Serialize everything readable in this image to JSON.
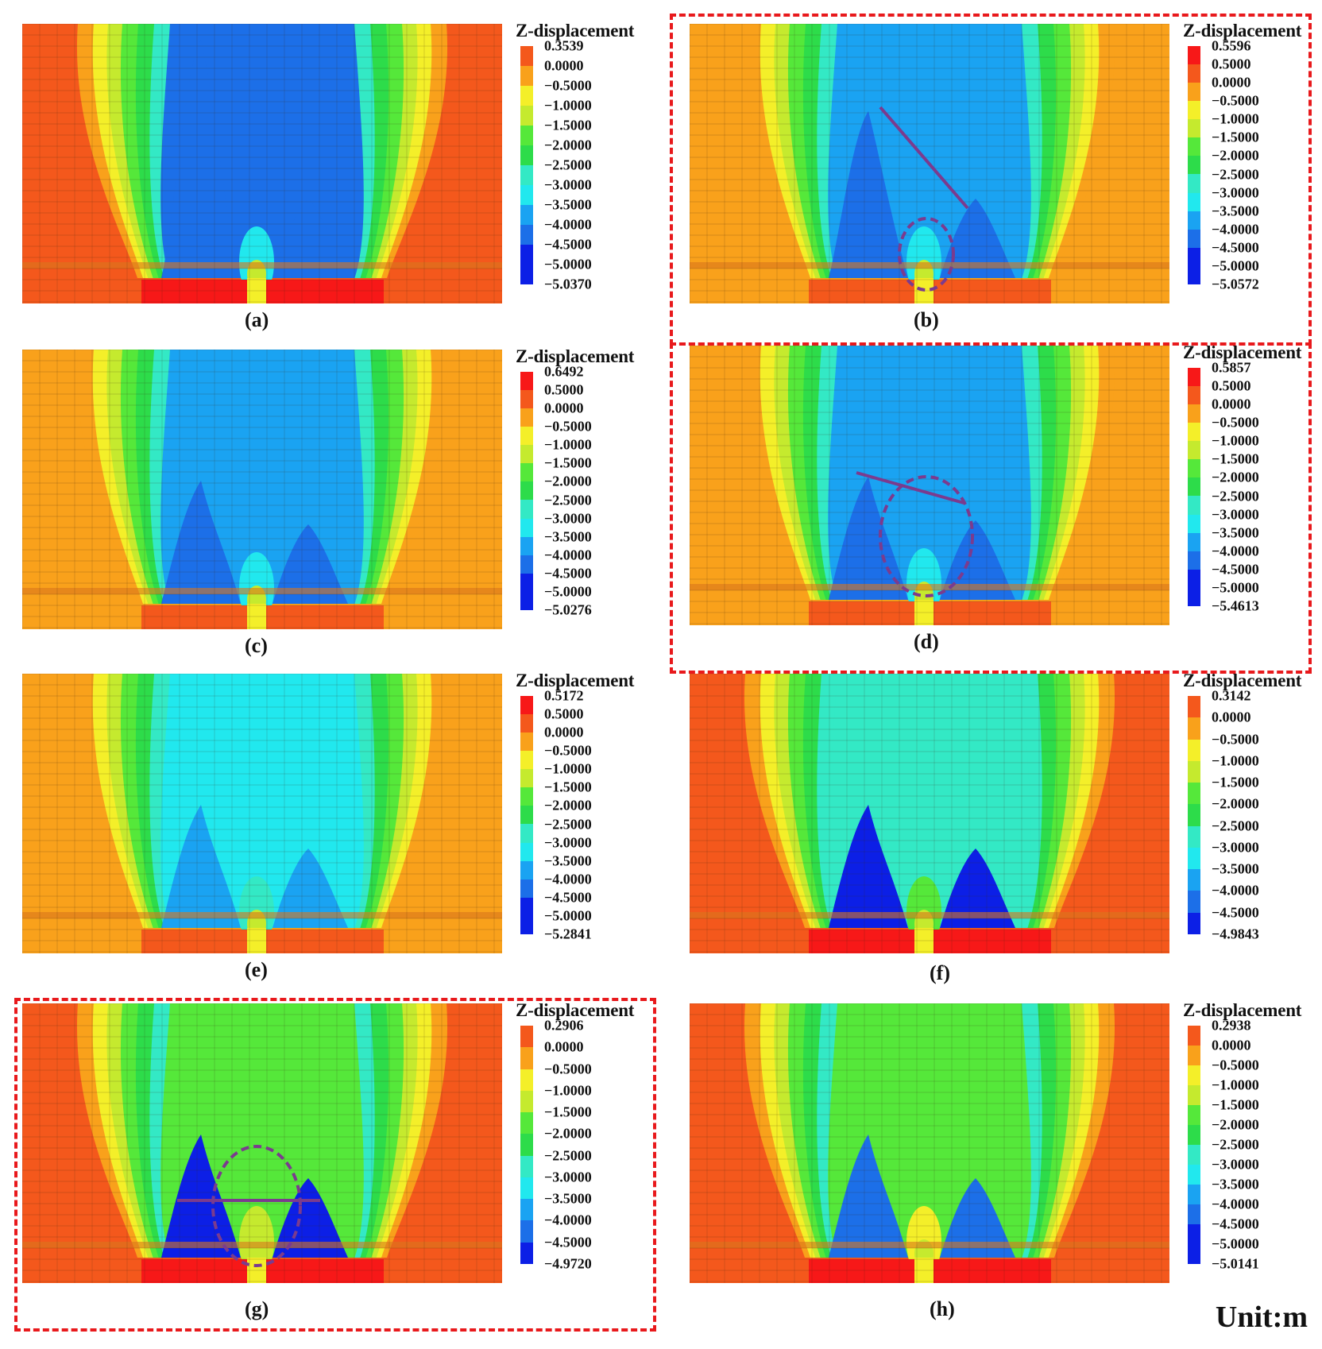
{
  "figure": {
    "unit_label": "Unit:m",
    "colors": {
      "orange_red": "#f4581c",
      "orange": "#f9a11b",
      "yellow": "#f4ef29",
      "yellow_green": "#c5ea2e",
      "green": "#55e83a",
      "bright_green": "#2ddc4a",
      "teal": "#33e9c5",
      "cyan": "#21e8ee",
      "sky_blue": "#1aa3f2",
      "mid_blue": "#1c6fe8",
      "deep_blue": "#0c1fe6",
      "red": "#f71818",
      "annotation_purple": "#7b3b8e",
      "frame_red": "#e8191c"
    },
    "panels": [
      {
        "caption": "(a)",
        "legend_title": "Z-displacement",
        "legend_values": [
          "0.3539",
          "0.0000",
          "−0.5000",
          "−1.0000",
          "−1.5000",
          "−2.0000",
          "−2.5000",
          "−3.0000",
          "−3.5000",
          "−4.0000",
          "−4.5000",
          "−5.0000",
          "−5.0370"
        ]
      },
      {
        "caption": "(b)",
        "legend_title": "Z-displacement",
        "legend_values": [
          "0.5596",
          "0.5000",
          "0.0000",
          "−0.5000",
          "−1.0000",
          "−1.5000",
          "−2.0000",
          "−2.5000",
          "−3.0000",
          "−3.5000",
          "−4.0000",
          "−4.5000",
          "−5.0000",
          "−5.0572"
        ]
      },
      {
        "caption": "(c)",
        "legend_title": "Z-displacement",
        "legend_values": [
          "0.6492",
          "0.5000",
          "0.0000",
          "−0.5000",
          "−1.0000",
          "−1.5000",
          "−2.0000",
          "−2.5000",
          "−3.0000",
          "−3.5000",
          "−4.0000",
          "−4.5000",
          "−5.0000",
          "−5.0276"
        ]
      },
      {
        "caption": "(d)",
        "legend_title": "Z-displacement",
        "legend_values": [
          "0.5857",
          "0.5000",
          "0.0000",
          "−0.5000",
          "−1.0000",
          "−1.5000",
          "−2.0000",
          "−2.5000",
          "−3.0000",
          "−3.5000",
          "−4.0000",
          "−4.5000",
          "−5.0000",
          "−5.4613"
        ]
      },
      {
        "caption": "(e)",
        "legend_title": "Z-displacement",
        "legend_values": [
          "0.5172",
          "0.5000",
          "0.0000",
          "−0.5000",
          "−1.0000",
          "−1.5000",
          "−2.0000",
          "−2.5000",
          "−3.0000",
          "−3.5000",
          "−4.0000",
          "−4.5000",
          "−5.0000",
          "−5.2841"
        ]
      },
      {
        "caption": "(f)",
        "legend_title": "Z-displacement",
        "legend_values": [
          "0.3142",
          "0.0000",
          "−0.5000",
          "−1.0000",
          "−1.5000",
          "−2.0000",
          "−2.5000",
          "−3.0000",
          "−3.5000",
          "−4.0000",
          "−4.5000",
          "−4.9843"
        ]
      },
      {
        "caption": "(g)",
        "legend_title": "Z-displacement",
        "legend_values": [
          "0.2906",
          "0.0000",
          "−0.5000",
          "−1.0000",
          "−1.5000",
          "−2.0000",
          "−2.5000",
          "−3.0000",
          "−3.5000",
          "−4.0000",
          "−4.5000",
          "−4.9720"
        ]
      },
      {
        "caption": "(h)",
        "legend_title": "Z-displacement",
        "legend_values": [
          "0.2938",
          "0.0000",
          "−0.5000",
          "−1.0000",
          "−1.5000",
          "−2.0000",
          "−2.5000",
          "−3.0000",
          "−3.5000",
          "−4.0000",
          "−4.5000",
          "−5.0000",
          "−5.0141"
        ]
      }
    ]
  }
}
